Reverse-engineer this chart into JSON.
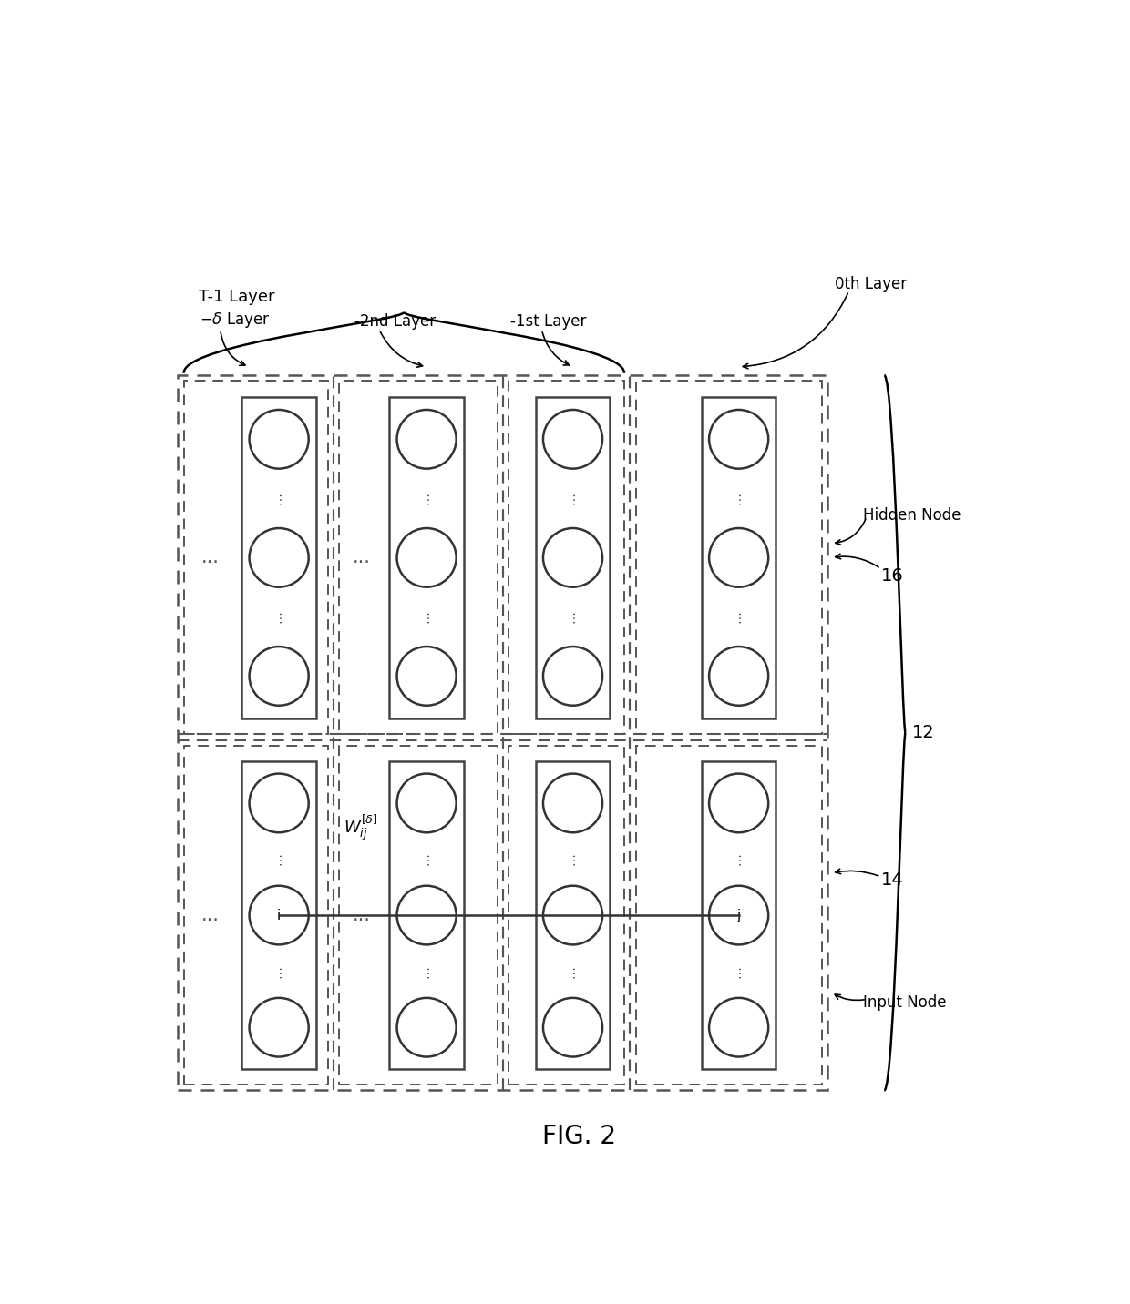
{
  "fig_width": 12.4,
  "fig_height": 14.32,
  "bg_color": "#ffffff",
  "title": "FIG. 2",
  "title_fontsize": 20,
  "layer_labels": [
    "-δ Layer",
    "-2nd Layer",
    "-1st Layer",
    "0th Layer"
  ],
  "t1_label": "T-1 Layer",
  "hidden_node_label": "Hidden Node",
  "input_node_label": "Input Node",
  "label_16": "16",
  "label_12": "12",
  "label_14": "14"
}
